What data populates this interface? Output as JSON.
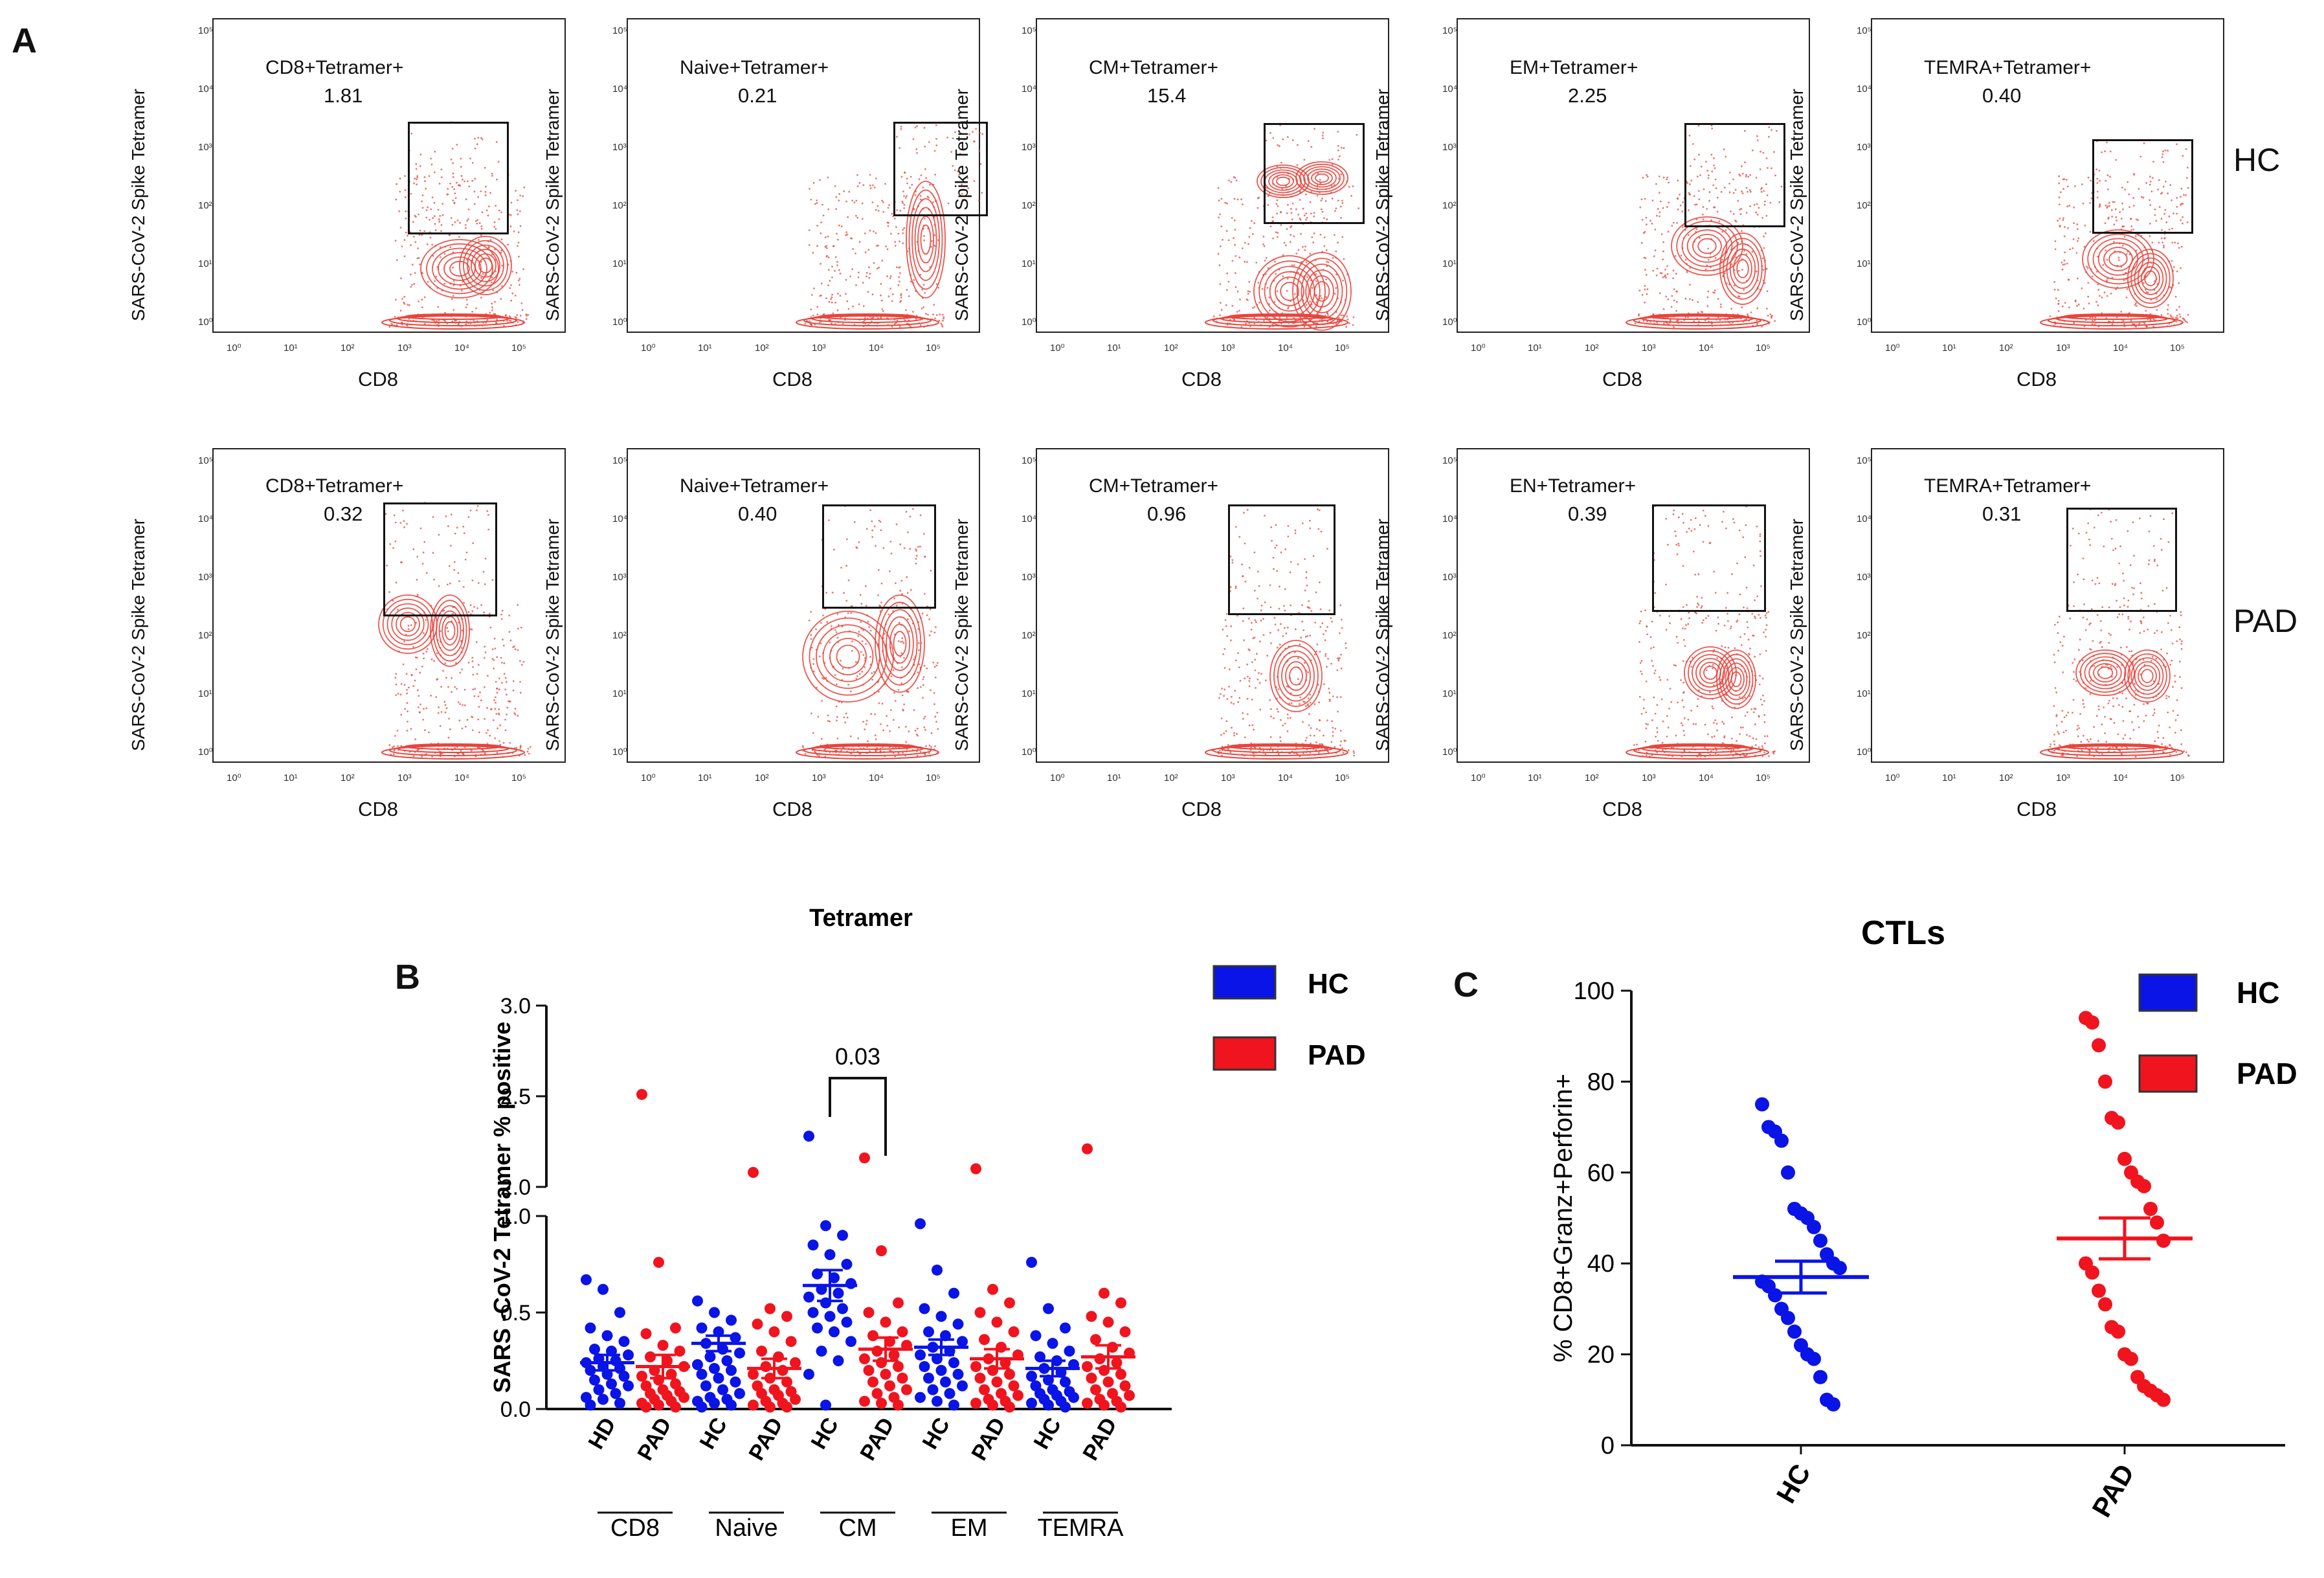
{
  "panel_a": {
    "letter": "A",
    "y_axis_label": "SARS-CoV-2 Spike Tetramer",
    "x_axis_label": "CD8",
    "x_ticks": [
      "10⁰",
      "10¹",
      "10²",
      "10³",
      "10⁴",
      "10⁵"
    ],
    "y_ticks": [
      "10⁰",
      "10¹",
      "10²",
      "10³",
      "10⁴",
      "10⁵"
    ],
    "row_labels": [
      "HC",
      "PAD"
    ],
    "rows": [
      {
        "group": "HC",
        "plots": [
          {
            "gate": "CD8+Tetramer+",
            "value": "1.81"
          },
          {
            "gate": "Naive+Tetramer+",
            "value": "0.21"
          },
          {
            "gate": "CM+Tetramer+",
            "value": "15.4"
          },
          {
            "gate": "EM+Tetramer+",
            "value": "2.25"
          },
          {
            "gate": "TEMRA+Tetramer+",
            "value": "0.40"
          }
        ]
      },
      {
        "group": "PAD",
        "plots": [
          {
            "gate": "CD8+Tetramer+",
            "value": "0.32"
          },
          {
            "gate": "Naive+Tetramer+",
            "value": "0.40"
          },
          {
            "gate": "CM+Tetramer+",
            "value": "0.96"
          },
          {
            "gate": "EN+Tetramer+",
            "value": "0.39"
          },
          {
            "gate": "TEMRA+Tetramer+",
            "value": "0.31"
          }
        ]
      }
    ]
  },
  "colors": {
    "hc": "#0a14e6",
    "pad": "#f0141e",
    "contour": "#e8453c",
    "axis": "#111111"
  },
  "chart_data": [
    {
      "id": "B",
      "type": "scatter",
      "letter": "B",
      "title": "Tetramer",
      "ylabel": "SARS -CoV-2 Tetramer % positive",
      "ylim": [
        0,
        3.0
      ],
      "axis_break": [
        1.0,
        2.0
      ],
      "yticks_lower": [
        "0.0",
        "0.5",
        "1.0"
      ],
      "yticks_upper": [
        "2.0",
        "2.5",
        "3.0"
      ],
      "categories": [
        "HD",
        "PAD",
        "HC",
        "PAD",
        "HC",
        "PAD",
        "HC",
        "PAD",
        "HC",
        "PAD"
      ],
      "group_labels": [
        "CD8",
        "Naive",
        "CM",
        "EM",
        "TEMRA"
      ],
      "legend": [
        "HC",
        "PAD"
      ],
      "annotation": {
        "text": "0.03",
        "between": [
          4,
          5
        ]
      },
      "series": [
        {
          "name": "HC CD8",
          "color_key": "hc",
          "cat": 0,
          "mean": 0.24,
          "sem": 0.04,
          "values": [
            0.67,
            0.62,
            0.5,
            0.42,
            0.38,
            0.35,
            0.31,
            0.3,
            0.28,
            0.26,
            0.25,
            0.24,
            0.22,
            0.21,
            0.2,
            0.18,
            0.17,
            0.15,
            0.13,
            0.12,
            0.1,
            0.08,
            0.06,
            0.05,
            0.03,
            0.02
          ]
        },
        {
          "name": "PAD CD8",
          "color_key": "pad",
          "cat": 1,
          "mean": 0.22,
          "sem": 0.06,
          "values": [
            2.51,
            0.76,
            0.42,
            0.39,
            0.33,
            0.3,
            0.27,
            0.25,
            0.22,
            0.2,
            0.18,
            0.17,
            0.15,
            0.13,
            0.12,
            0.1,
            0.09,
            0.08,
            0.07,
            0.06,
            0.05,
            0.04,
            0.03,
            0.02,
            0.01,
            0.01
          ]
        },
        {
          "name": "HC Naive",
          "color_key": "hc",
          "cat": 2,
          "mean": 0.34,
          "sem": 0.04,
          "values": [
            0.56,
            0.5,
            0.46,
            0.42,
            0.4,
            0.37,
            0.34,
            0.31,
            0.29,
            0.27,
            0.25,
            0.23,
            0.21,
            0.2,
            0.18,
            0.16,
            0.14,
            0.12,
            0.1,
            0.08,
            0.06,
            0.05,
            0.04,
            0.03,
            0.02,
            0.01
          ]
        },
        {
          "name": "PAD Naive",
          "color_key": "pad",
          "cat": 3,
          "mean": 0.21,
          "sem": 0.05,
          "values": [
            2.08,
            0.52,
            0.48,
            0.44,
            0.4,
            0.35,
            0.3,
            0.27,
            0.24,
            0.22,
            0.2,
            0.18,
            0.16,
            0.14,
            0.12,
            0.1,
            0.09,
            0.08,
            0.07,
            0.05,
            0.04,
            0.03,
            0.02,
            0.01,
            0.01
          ]
        },
        {
          "name": "HC CM",
          "color_key": "hc",
          "cat": 4,
          "mean": 0.64,
          "sem": 0.08,
          "values": [
            2.28,
            0.95,
            0.9,
            0.85,
            0.8,
            0.75,
            0.7,
            0.68,
            0.65,
            0.62,
            0.6,
            0.58,
            0.55,
            0.52,
            0.5,
            0.48,
            0.45,
            0.42,
            0.4,
            0.35,
            0.3,
            0.25,
            0.18,
            0.02
          ]
        },
        {
          "name": "PAD CM",
          "color_key": "pad",
          "cat": 5,
          "mean": 0.31,
          "sem": 0.06,
          "values": [
            2.16,
            0.82,
            0.55,
            0.5,
            0.45,
            0.4,
            0.38,
            0.35,
            0.33,
            0.3,
            0.28,
            0.26,
            0.24,
            0.22,
            0.2,
            0.18,
            0.16,
            0.14,
            0.12,
            0.1,
            0.08,
            0.06,
            0.04,
            0.03,
            0.02
          ]
        },
        {
          "name": "HC EM",
          "color_key": "hc",
          "cat": 6,
          "mean": 0.32,
          "sem": 0.04,
          "values": [
            0.96,
            0.72,
            0.6,
            0.52,
            0.48,
            0.44,
            0.4,
            0.38,
            0.35,
            0.32,
            0.3,
            0.28,
            0.26,
            0.24,
            0.22,
            0.2,
            0.18,
            0.16,
            0.14,
            0.12,
            0.1,
            0.08,
            0.06,
            0.04,
            0.02
          ]
        },
        {
          "name": "PAD EM",
          "color_key": "pad",
          "cat": 7,
          "mean": 0.26,
          "sem": 0.05,
          "values": [
            2.1,
            0.62,
            0.55,
            0.5,
            0.45,
            0.4,
            0.36,
            0.32,
            0.28,
            0.26,
            0.24,
            0.22,
            0.2,
            0.18,
            0.16,
            0.14,
            0.12,
            0.1,
            0.08,
            0.07,
            0.05,
            0.04,
            0.03,
            0.02,
            0.01
          ]
        },
        {
          "name": "HC TEMRA",
          "color_key": "hc",
          "cat": 8,
          "mean": 0.21,
          "sem": 0.04,
          "values": [
            0.76,
            0.52,
            0.42,
            0.38,
            0.34,
            0.3,
            0.27,
            0.25,
            0.23,
            0.21,
            0.19,
            0.17,
            0.15,
            0.14,
            0.12,
            0.1,
            0.09,
            0.08,
            0.07,
            0.06,
            0.05,
            0.04,
            0.03,
            0.02,
            0.01
          ]
        },
        {
          "name": "PAD TEMRA",
          "color_key": "pad",
          "cat": 9,
          "mean": 0.27,
          "sem": 0.06,
          "values": [
            2.21,
            0.6,
            0.55,
            0.48,
            0.45,
            0.4,
            0.36,
            0.32,
            0.29,
            0.26,
            0.24,
            0.22,
            0.2,
            0.18,
            0.16,
            0.14,
            0.12,
            0.1,
            0.08,
            0.07,
            0.05,
            0.04,
            0.03,
            0.02,
            0.01
          ]
        }
      ]
    },
    {
      "id": "C",
      "type": "scatter",
      "letter": "C",
      "title": "CTLs",
      "ylabel": "% CD8+Granz+Perforin+",
      "ylim": [
        0,
        100
      ],
      "yticks": [
        "0",
        "20",
        "40",
        "60",
        "80",
        "100"
      ],
      "categories": [
        "HC",
        "PAD"
      ],
      "legend": [
        "HC",
        "PAD"
      ],
      "series": [
        {
          "name": "HC",
          "color_key": "hc",
          "cat": 0,
          "mean": 37,
          "sem": 3.5,
          "values": [
            75,
            70,
            69,
            67,
            60,
            52,
            51,
            50,
            48,
            45,
            42,
            40,
            39,
            36,
            35,
            33,
            30,
            28,
            25,
            22,
            20,
            19,
            15,
            10,
            9
          ]
        },
        {
          "name": "PAD",
          "color_key": "pad",
          "cat": 1,
          "mean": 45.5,
          "sem": 4.5,
          "values": [
            94,
            93,
            88,
            80,
            72,
            71,
            63,
            60,
            58,
            57,
            52,
            49,
            45,
            40,
            38,
            34,
            31,
            26,
            25,
            20,
            19,
            15,
            13,
            12,
            11,
            10
          ]
        }
      ]
    }
  ]
}
